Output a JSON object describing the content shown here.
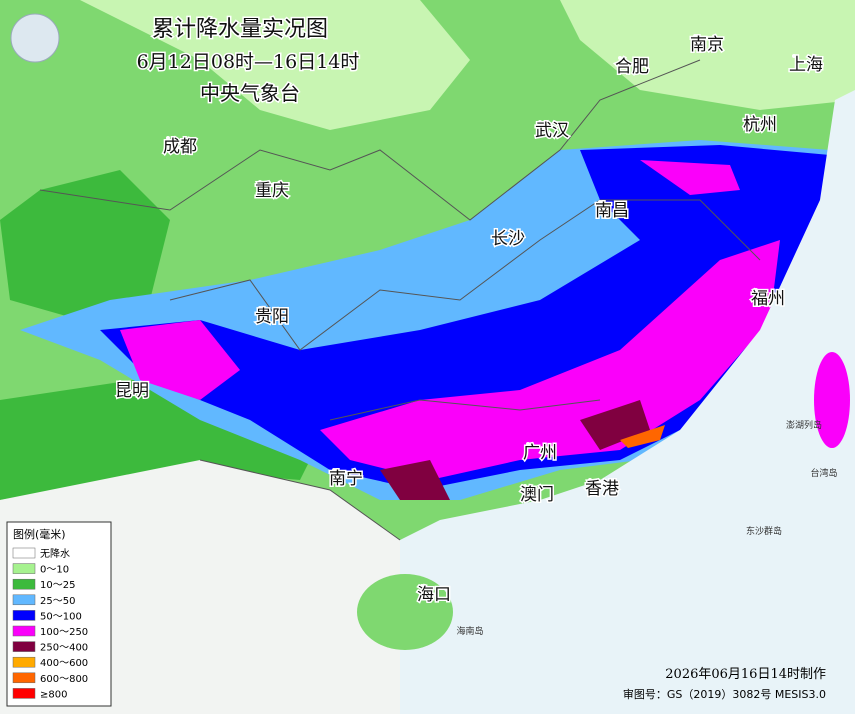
{
  "header": {
    "title": "累计降水量实况图",
    "subtitle": "6月12日08时—16日14时",
    "agency": "中央气象台"
  },
  "cities": [
    {
      "label": "南京"
    },
    {
      "label": "合肥"
    },
    {
      "label": "上海"
    },
    {
      "label": "武汉"
    },
    {
      "label": "杭州"
    },
    {
      "label": "成都"
    },
    {
      "label": "重庆"
    },
    {
      "label": "南昌"
    },
    {
      "label": "长沙"
    },
    {
      "label": "福州"
    },
    {
      "label": "贵阳"
    },
    {
      "label": "昆明"
    },
    {
      "label": "南宁"
    },
    {
      "label": "广州"
    },
    {
      "label": "澳门"
    },
    {
      "label": "香港"
    },
    {
      "label": "海口"
    }
  ],
  "places": [
    {
      "label": "澎湖列岛"
    },
    {
      "label": "台湾岛"
    },
    {
      "label": "东沙群岛"
    },
    {
      "label": "海南岛"
    }
  ],
  "legend": {
    "title": "图例(毫米)",
    "items": [
      {
        "label": "无降水",
        "color": "#ffffff"
      },
      {
        "label": "0～10",
        "color": "#a6f28f"
      },
      {
        "label": "10～25",
        "color": "#3dba3d"
      },
      {
        "label": "25～50",
        "color": "#61b8ff"
      },
      {
        "label": "50～100",
        "color": "#0000fe"
      },
      {
        "label": "100～250",
        "color": "#fa00fa"
      },
      {
        "label": "250～400",
        "color": "#800040"
      },
      {
        "label": "400～600",
        "color": "#ffaa00"
      },
      {
        "label": "600～800",
        "color": "#ff6600"
      },
      {
        "label": "≥800",
        "color": "#ff0000"
      }
    ]
  },
  "footer": {
    "made": "2026年06月16日14时制作",
    "approval": "审图号：GS（2019）3082号 MESIS3.0"
  }
}
